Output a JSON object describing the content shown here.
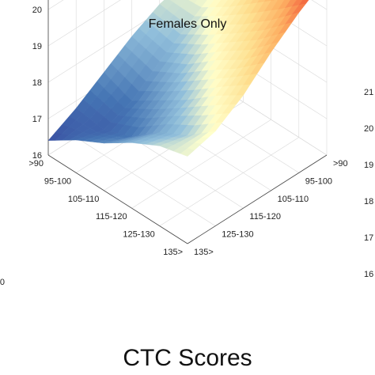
{
  "chart_data": {
    "type": "surface",
    "title": "Females Only",
    "xlabel": "CTC Scores",
    "zlabel": "",
    "colormap": "red-yellow-blue (diverging)",
    "grid": true,
    "zlim": [
      16,
      21
    ],
    "z_ticks": [
      "16",
      "17",
      "18",
      "19",
      "20",
      "21"
    ],
    "right_axis_ticks": [
      "16",
      "17",
      "18",
      "19",
      "20",
      "21"
    ],
    "left_partial_tick": "0",
    "x_categories": [
      ">90",
      "95-100",
      "105-110",
      "115-120",
      "125-130",
      "135>"
    ],
    "y_categories": [
      ">90",
      "95-100",
      "105-110",
      "115-120",
      "125-130",
      "135>"
    ],
    "z_values": [
      [
        18.4,
        18.6,
        19.1,
        19.8,
        20.4,
        20.9
      ],
      [
        18.2,
        18.0,
        18.6,
        19.1,
        19.7,
        20.4
      ],
      [
        17.8,
        17.6,
        18.0,
        18.6,
        19.1,
        19.8
      ],
      [
        17.3,
        17.0,
        17.5,
        18.0,
        18.6,
        19.1
      ],
      [
        16.9,
        16.7,
        17.0,
        17.6,
        18.1,
        18.6
      ],
      [
        16.4,
        16.8,
        17.3,
        17.8,
        18.2,
        18.4
      ]
    ]
  }
}
